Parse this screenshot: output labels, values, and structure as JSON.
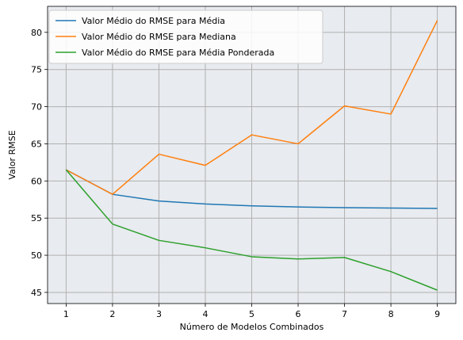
{
  "chart_data": {
    "type": "line",
    "title": "",
    "xlabel": "Número de Modelos Combinados",
    "ylabel": "Valor RMSE",
    "x": [
      1,
      2,
      3,
      4,
      5,
      6,
      7,
      8,
      9
    ],
    "xlim": [
      0.6,
      9.4
    ],
    "ylim": [
      43.5,
      83.5
    ],
    "yticks": [
      45,
      50,
      55,
      60,
      65,
      70,
      75,
      80
    ],
    "grid": true,
    "background_color": "#e8ebef",
    "legend_position": "upper-left",
    "series": [
      {
        "name": "Valor Médio do RMSE para Média",
        "color": "#1f77b4",
        "values": [
          61.5,
          58.2,
          57.3,
          56.9,
          56.65,
          56.5,
          56.4,
          56.35,
          56.3
        ]
      },
      {
        "name": "Valor Médio do RMSE para Mediana",
        "color": "#ff7f0e",
        "values": [
          61.5,
          58.2,
          63.6,
          62.1,
          66.2,
          65.0,
          70.1,
          69.0,
          81.6
        ]
      },
      {
        "name": "Valor Médio do RMSE para Média Ponderada",
        "color": "#2ca02c",
        "values": [
          61.5,
          54.2,
          52.0,
          51.0,
          49.8,
          49.5,
          49.7,
          47.8,
          45.3
        ]
      }
    ]
  }
}
